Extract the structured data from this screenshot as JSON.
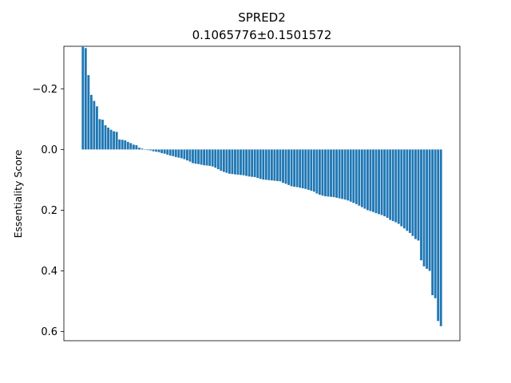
{
  "chart_data": {
    "type": "bar",
    "title": "SPRED2",
    "subtitle": "0.1065776±0.1501572",
    "xlabel": "",
    "ylabel": "Essentiality Score",
    "y_inverted": true,
    "ylim": [
      -0.34,
      0.63
    ],
    "yticks": [
      -0.2,
      0.0,
      0.2,
      0.4,
      0.6
    ],
    "ytick_labels": [
      "−0.2",
      "0.0",
      "0.2",
      "0.4",
      "0.6"
    ],
    "x_ticks_visible": false,
    "grid": false,
    "bar_color": "#1f77b4",
    "values": [
      -0.338,
      -0.334,
      -0.245,
      -0.18,
      -0.16,
      -0.142,
      -0.1,
      -0.098,
      -0.08,
      -0.072,
      -0.065,
      -0.06,
      -0.058,
      -0.033,
      -0.032,
      -0.03,
      -0.025,
      -0.021,
      -0.016,
      -0.014,
      -0.006,
      -0.003,
      0.001,
      0.002,
      0.003,
      0.006,
      0.007,
      0.009,
      0.012,
      0.014,
      0.017,
      0.02,
      0.022,
      0.025,
      0.027,
      0.029,
      0.032,
      0.036,
      0.04,
      0.045,
      0.047,
      0.048,
      0.05,
      0.052,
      0.053,
      0.054,
      0.056,
      0.06,
      0.065,
      0.07,
      0.074,
      0.077,
      0.08,
      0.081,
      0.082,
      0.083,
      0.084,
      0.085,
      0.087,
      0.089,
      0.09,
      0.091,
      0.094,
      0.097,
      0.099,
      0.1,
      0.101,
      0.102,
      0.103,
      0.104,
      0.105,
      0.11,
      0.113,
      0.117,
      0.121,
      0.123,
      0.124,
      0.126,
      0.128,
      0.13,
      0.133,
      0.136,
      0.139,
      0.145,
      0.149,
      0.152,
      0.154,
      0.155,
      0.156,
      0.157,
      0.159,
      0.161,
      0.163,
      0.165,
      0.168,
      0.172,
      0.176,
      0.18,
      0.185,
      0.19,
      0.195,
      0.2,
      0.203,
      0.206,
      0.21,
      0.213,
      0.216,
      0.22,
      0.225,
      0.232,
      0.236,
      0.24,
      0.245,
      0.253,
      0.26,
      0.268,
      0.275,
      0.285,
      0.295,
      0.3,
      0.365,
      0.385,
      0.393,
      0.4,
      0.48,
      0.49,
      0.565,
      0.582
    ]
  }
}
